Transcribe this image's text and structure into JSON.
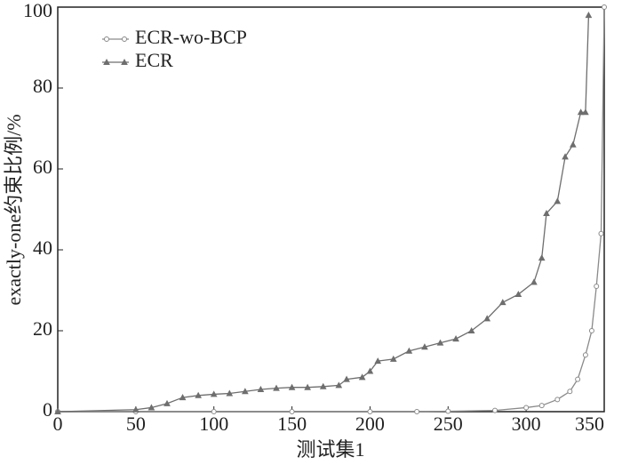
{
  "chart_data": {
    "type": "line",
    "xlabel": "测试集1",
    "ylabel": "exactly-one约束比例/%",
    "xlim": [
      0,
      350
    ],
    "ylim": [
      0,
      100
    ],
    "xticks": [
      0,
      50,
      100,
      150,
      200,
      250,
      300,
      350
    ],
    "yticks": [
      0,
      20,
      40,
      60,
      80,
      100
    ],
    "legend": "upper-left",
    "series": [
      {
        "name": "ECR-wo-BCP",
        "color": "#8a8a8a",
        "marker": "circle",
        "x": [
          0,
          50,
          100,
          150,
          200,
          230,
          250,
          280,
          300,
          310,
          320,
          328,
          333,
          338,
          342,
          345,
          348,
          350
        ],
        "values": [
          0,
          0,
          0,
          0,
          0,
          0,
          0.1,
          0.3,
          1,
          1.5,
          3,
          5,
          8,
          14,
          20,
          31,
          44,
          100
        ]
      },
      {
        "name": "ECR",
        "color": "#6e6e6e",
        "marker": "triangle",
        "x": [
          0,
          50,
          60,
          70,
          80,
          90,
          100,
          110,
          120,
          130,
          140,
          150,
          160,
          170,
          180,
          185,
          195,
          200,
          205,
          215,
          225,
          235,
          245,
          255,
          265,
          275,
          285,
          295,
          305,
          310,
          313,
          320,
          325,
          330,
          335,
          338,
          340
        ],
        "values": [
          0,
          0.5,
          1,
          2,
          3.5,
          4,
          4.3,
          4.5,
          5,
          5.5,
          5.8,
          6,
          6,
          6.2,
          6.5,
          8,
          8.5,
          10,
          12.5,
          13,
          15,
          16,
          17,
          18,
          20,
          23,
          27,
          29,
          32,
          38,
          49,
          52,
          63,
          66,
          74,
          74,
          98
        ]
      }
    ]
  }
}
